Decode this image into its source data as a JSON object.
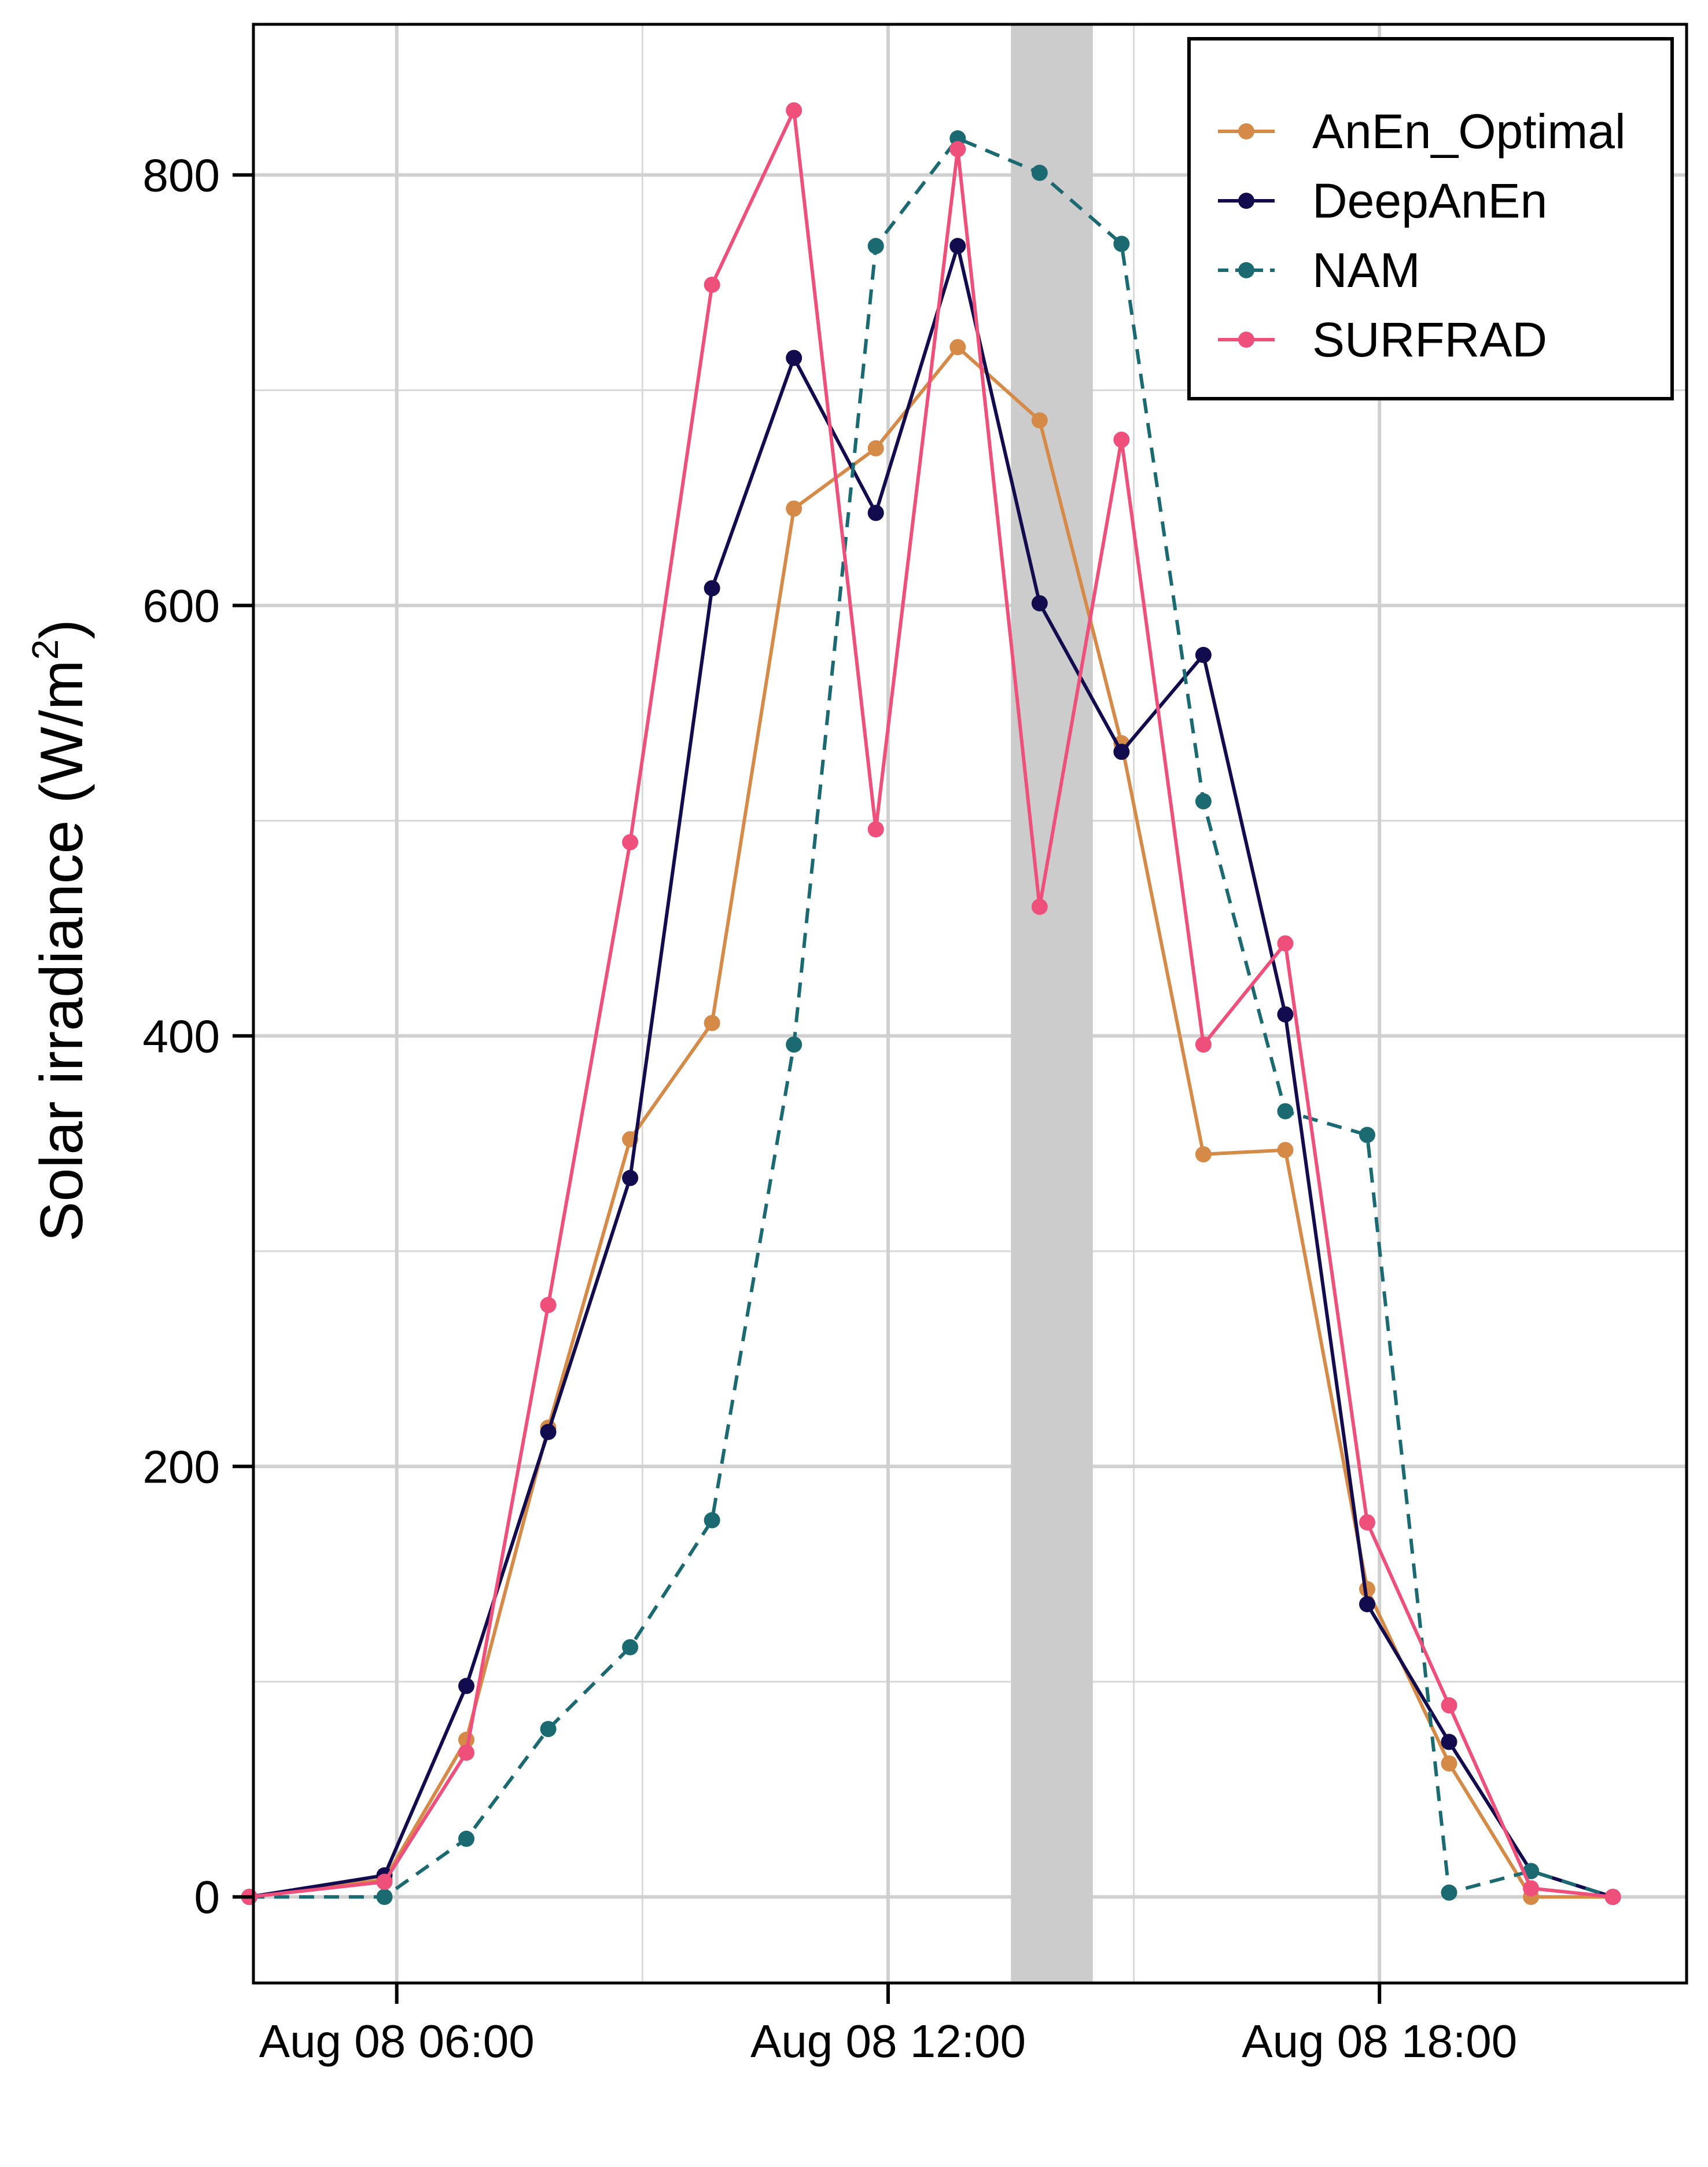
{
  "chart_data": {
    "type": "line",
    "title": "",
    "xlabel": "",
    "ylabel": {
      "main": "Solar irradiance (W/m",
      "sup": "2",
      "close": ")"
    },
    "x": [
      "Aug 08 04:12",
      "Aug 08 05:51",
      "Aug 08 06:51",
      "Aug 08 07:51",
      "Aug 08 08:51",
      "Aug 08 09:51",
      "Aug 08 10:51",
      "Aug 08 11:51",
      "Aug 08 12:51",
      "Aug 08 13:51",
      "Aug 08 14:51",
      "Aug 08 15:51",
      "Aug 08 16:51",
      "Aug 08 17:51",
      "Aug 08 18:51",
      "Aug 08 19:51",
      "Aug 08 20:51"
    ],
    "xaxis": {
      "ticks": [
        "Aug 08 06:00",
        "Aug 08 12:00",
        "Aug 08 18:00"
      ],
      "range": [
        "Aug 08 04:15",
        "Aug 08 21:45"
      ],
      "minor_grid": [
        "Aug 08 09:00",
        "Aug 08 15:00"
      ]
    },
    "ylim": [
      -40,
      870
    ],
    "yticks": [
      0,
      200,
      400,
      600,
      800
    ],
    "yminor_grid": [
      100,
      300,
      500,
      700
    ],
    "grid": true,
    "legend": {
      "position": "top-right"
    },
    "highlight_band": {
      "x": [
        "Aug 08 13:30",
        "Aug 08 14:30"
      ],
      "color": "#cccccc"
    },
    "series": [
      {
        "name": "AnEn_Optimal",
        "color": "#d68a48",
        "dashed": false,
        "values": [
          0,
          8,
          73,
          218,
          352,
          406,
          645,
          673,
          720,
          686,
          536,
          345,
          347,
          143,
          62,
          0,
          0
        ]
      },
      {
        "name": "DeepAnEn",
        "color": "#120b4d",
        "dashed": false,
        "values": [
          0,
          10,
          98,
          216,
          334,
          608,
          715,
          643,
          767,
          601,
          532,
          577,
          410,
          136,
          72,
          12,
          0
        ]
      },
      {
        "name": "NAM",
        "color": "#1b6a72",
        "dashed": true,
        "values": [
          0,
          0,
          27,
          78,
          116,
          175,
          396,
          767,
          817,
          801,
          768,
          509,
          365,
          354,
          2,
          12,
          0
        ]
      },
      {
        "name": "SURFRAD",
        "color": "#ee4f7b",
        "dashed": false,
        "values": [
          0,
          7,
          67,
          275,
          490,
          749,
          830,
          496,
          812,
          460,
          677,
          396,
          443,
          174,
          89,
          4,
          0
        ]
      }
    ]
  }
}
